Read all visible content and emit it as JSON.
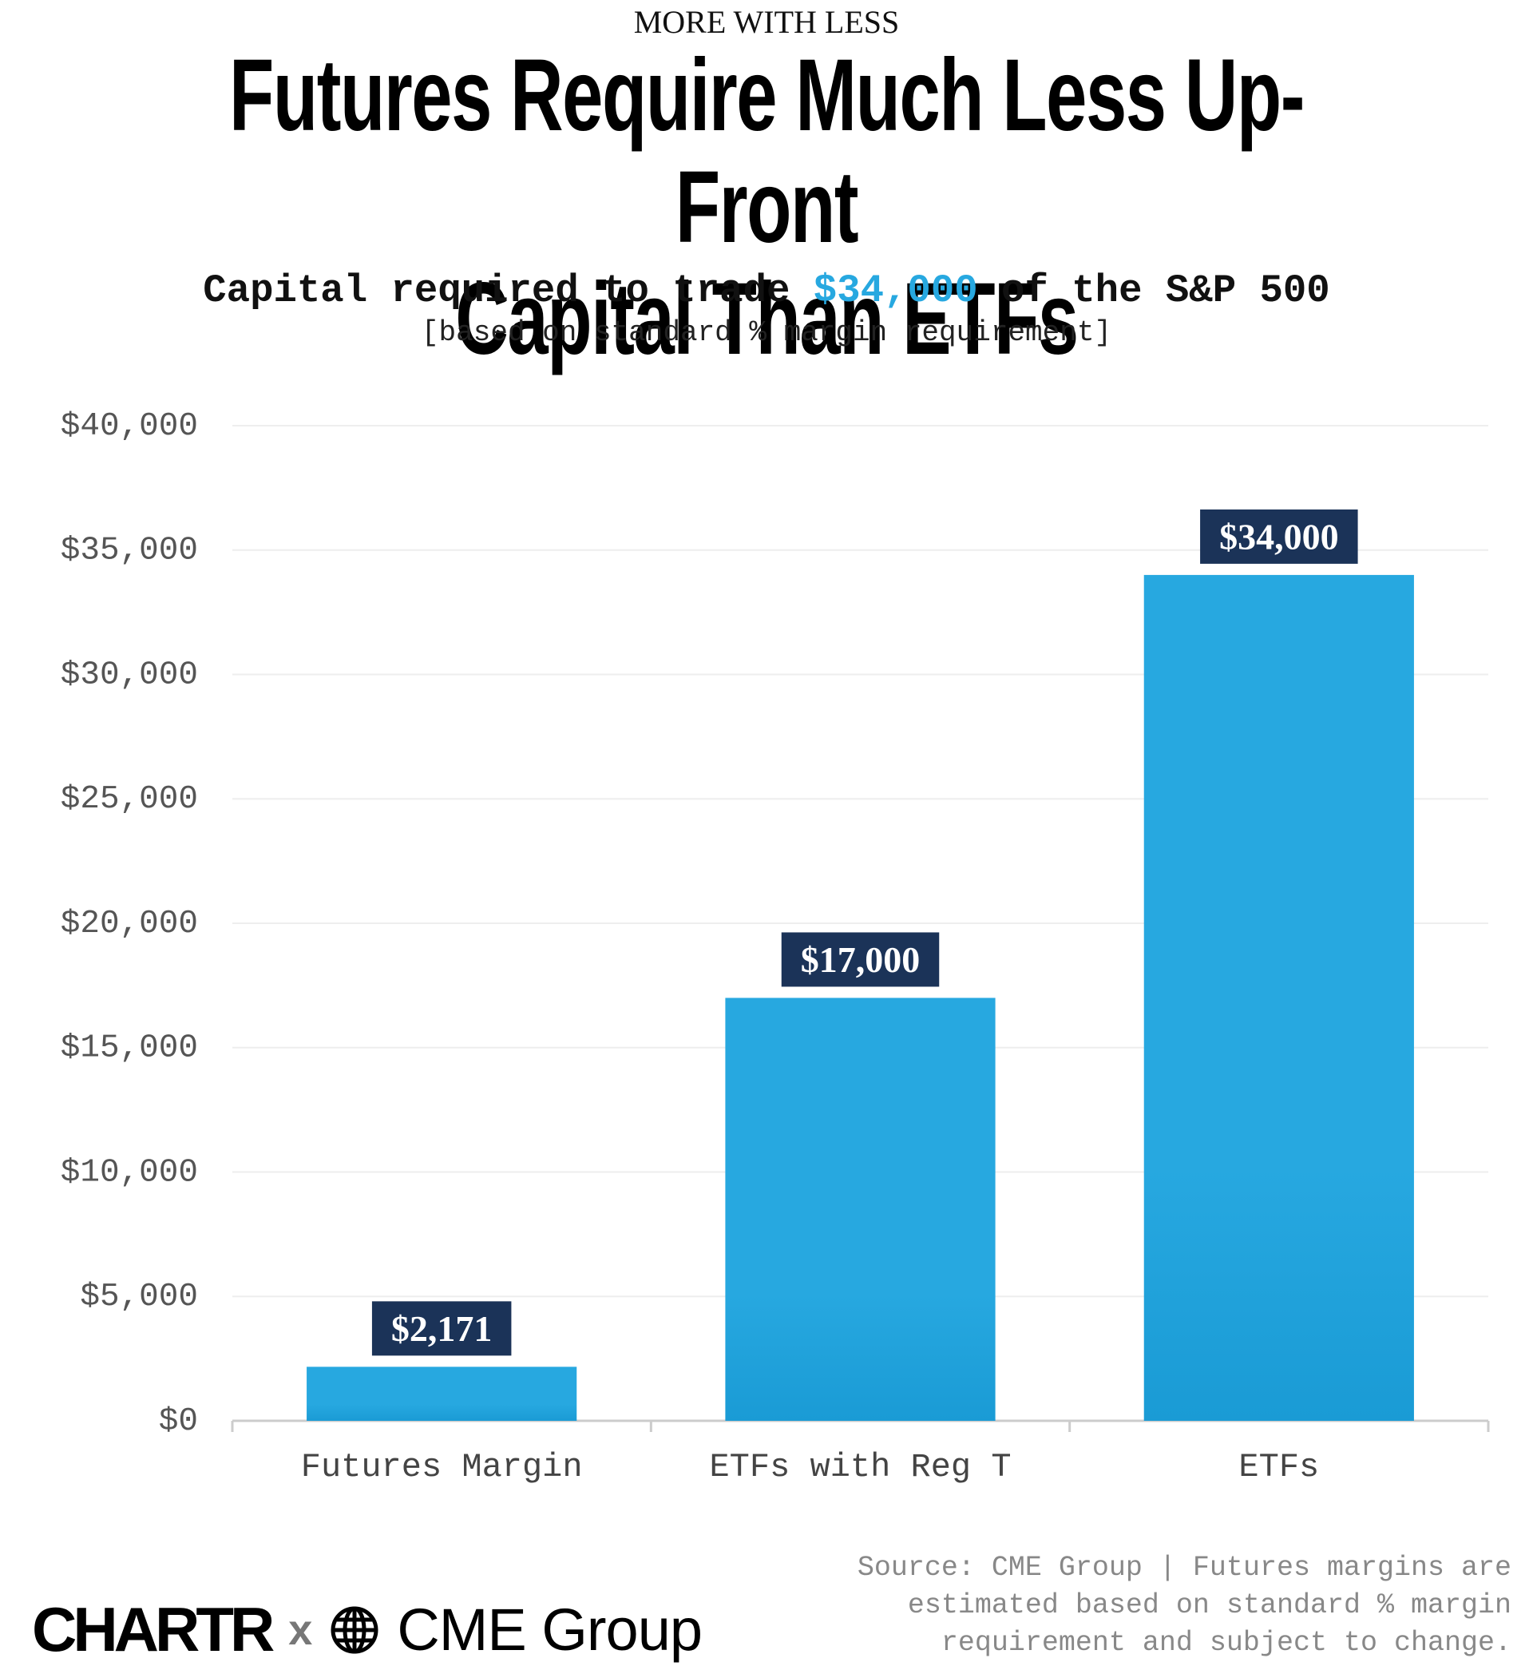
{
  "chart_data": {
    "type": "bar",
    "kicker": "MORE WITH LESS",
    "title": "Futures Require Much Less Up-Front\nCapital Than ETFs",
    "subtitle_parts": [
      "Capital required to trade",
      "$34,000",
      "of the S&P 500"
    ],
    "note": "[based on standard % margin requirement]",
    "categories": [
      "Futures Margin",
      "ETFs with Reg T",
      "ETFs"
    ],
    "values": [
      2171,
      17000,
      34000
    ],
    "value_labels": [
      "$2,171",
      "$17,000",
      "$34,000"
    ],
    "color": "#27a8e0",
    "ylim": [
      0,
      40000
    ],
    "yticks": [
      {
        "value": 0,
        "label": "$0"
      },
      {
        "value": 5000,
        "label": "$5,000"
      },
      {
        "value": 10000,
        "label": "$10,000"
      },
      {
        "value": 15000,
        "label": "$15,000"
      },
      {
        "value": 20000,
        "label": "$20,000"
      },
      {
        "value": 25000,
        "label": "$25,000"
      },
      {
        "value": 30000,
        "label": "$30,000"
      },
      {
        "value": 35000,
        "label": "$35,000"
      },
      {
        "value": 40000,
        "label": "$40,000"
      }
    ],
    "grid": true,
    "source": "Source: CME Group | Futures margins are\nestimated based on standard % margin\nrequirement and subject to change.",
    "logos": [
      "CHARTR",
      "x",
      "CME Group"
    ]
  }
}
